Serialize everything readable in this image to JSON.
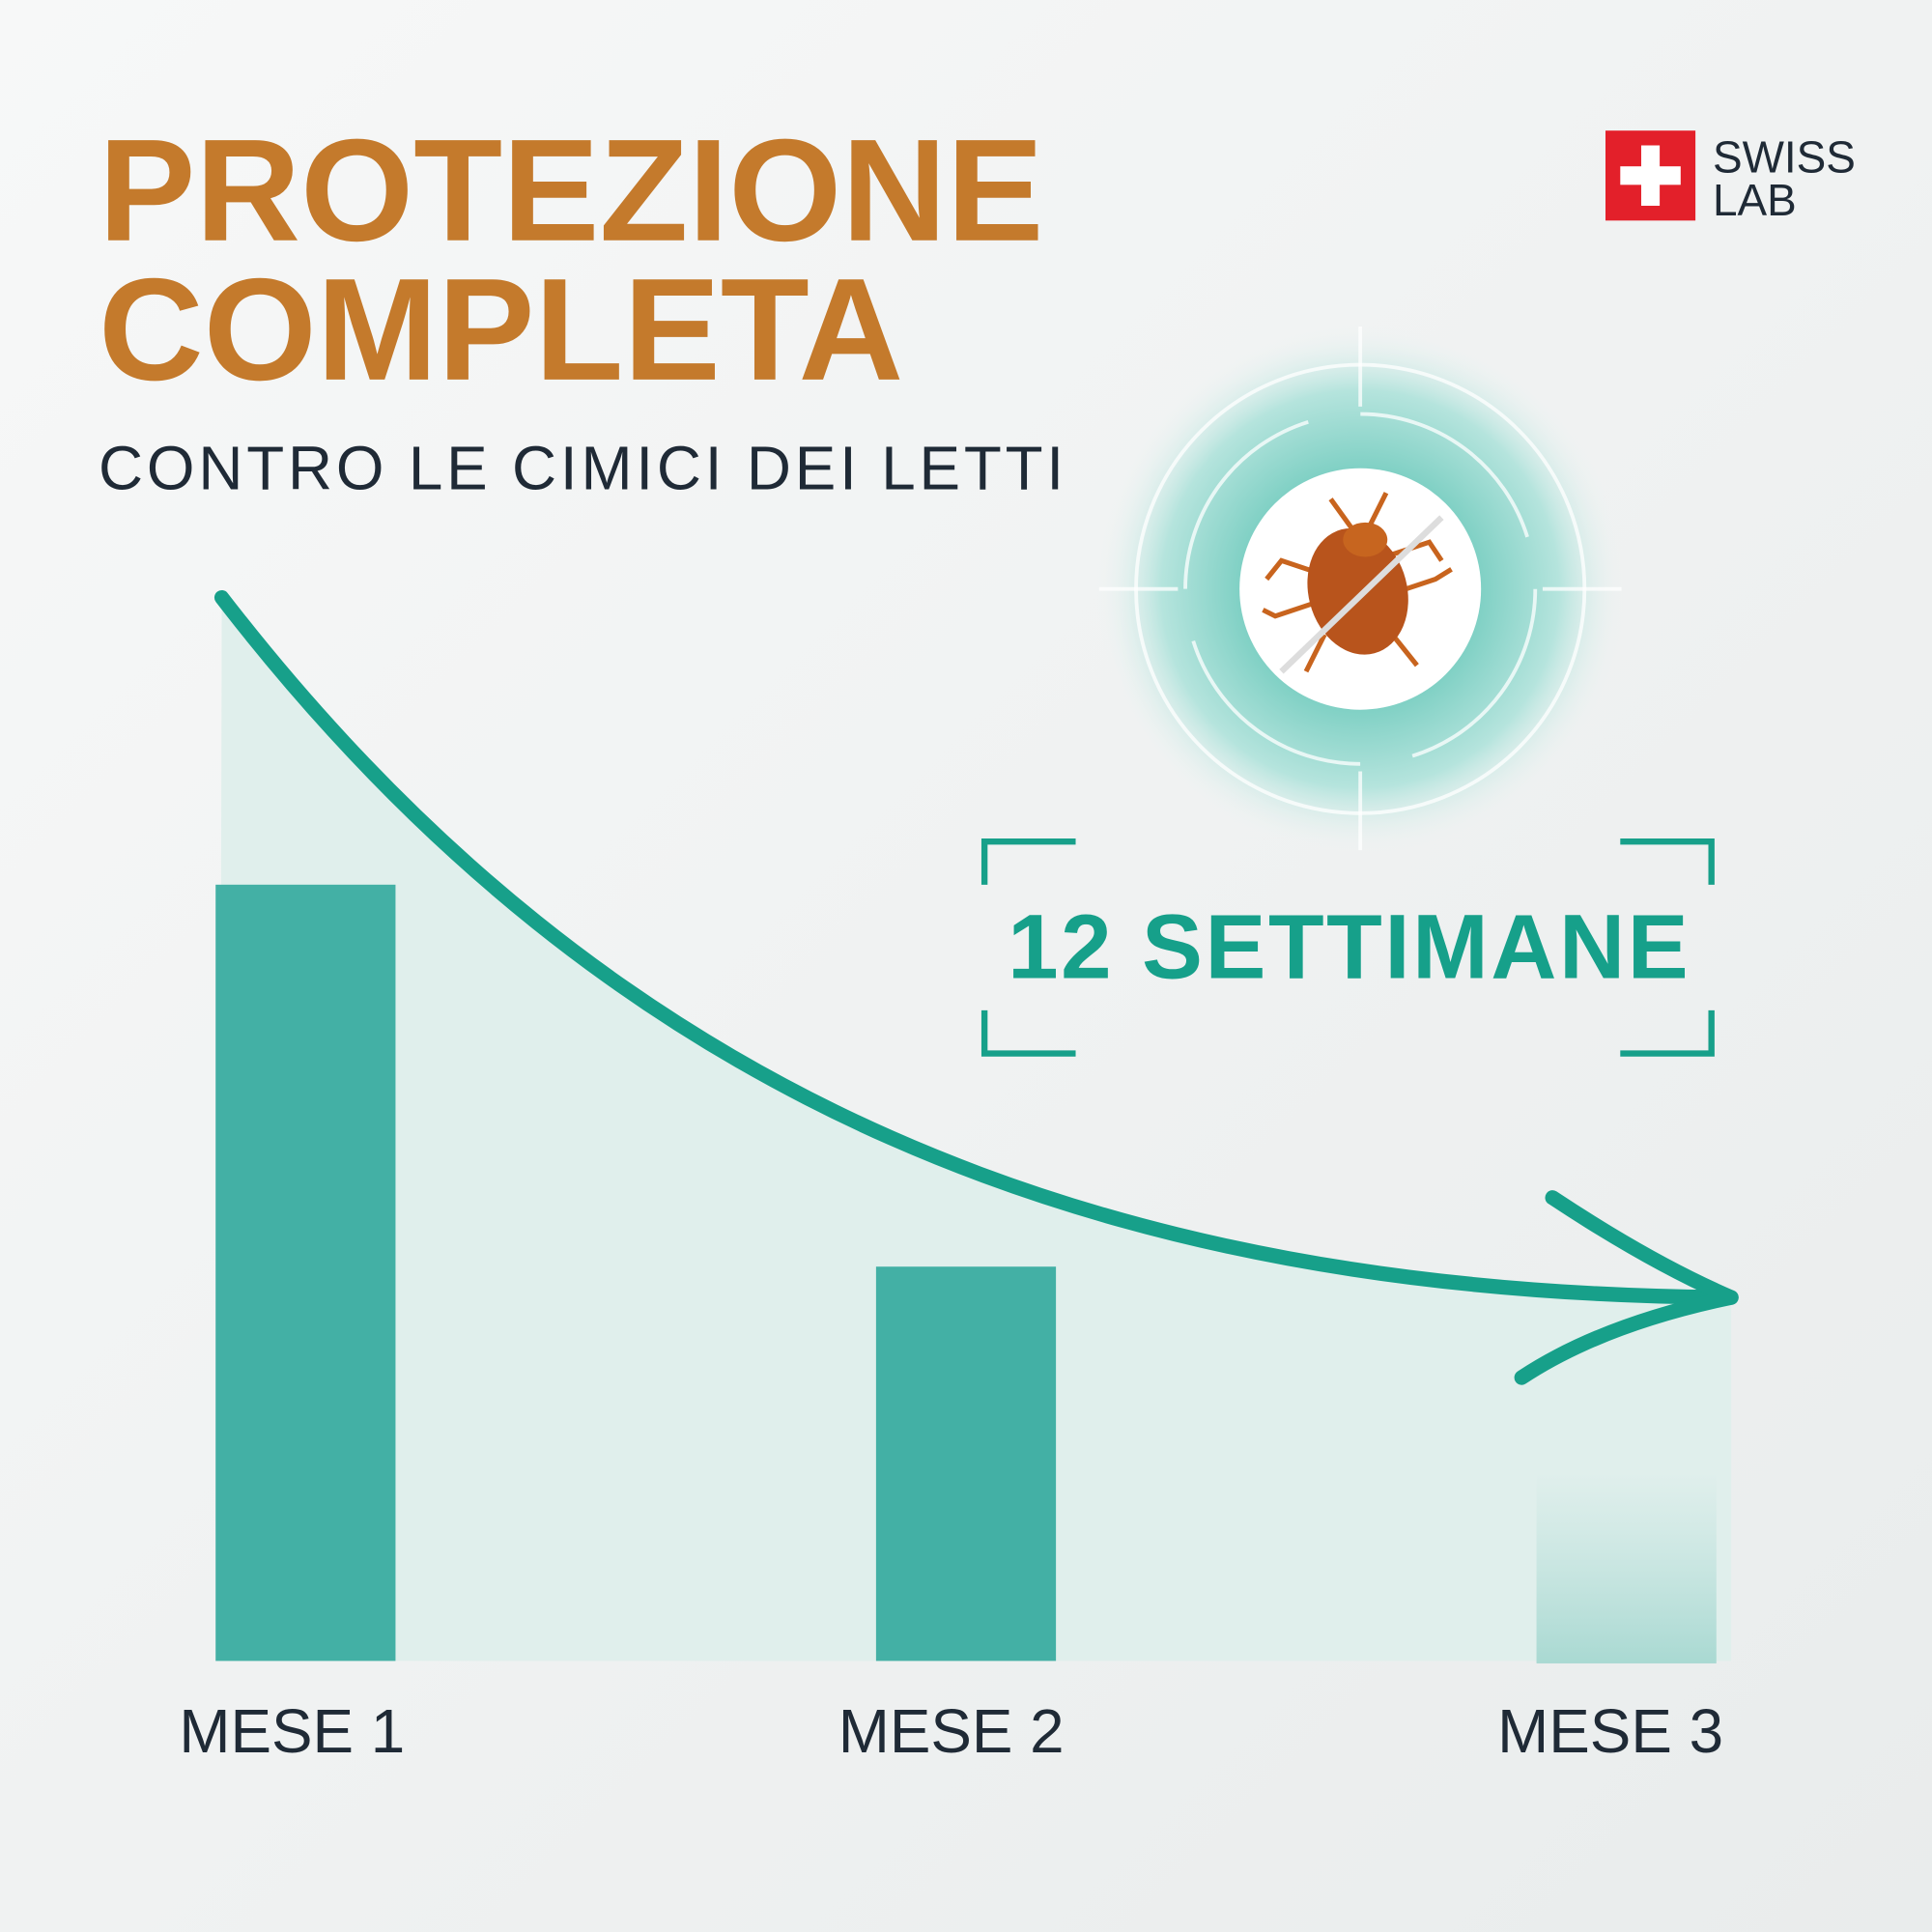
{
  "header": {
    "title_line1": "PROTEZIONE",
    "title_line2": "COMPLETA",
    "subtitle": "CONTRO LE CIMICI DEI LETTI"
  },
  "badge": {
    "line1": "SWISS",
    "line2": "LAB"
  },
  "highlight": "12 SETTIMANE",
  "months": [
    "MESE 1",
    "MESE 2",
    "MESE 3"
  ]
}
